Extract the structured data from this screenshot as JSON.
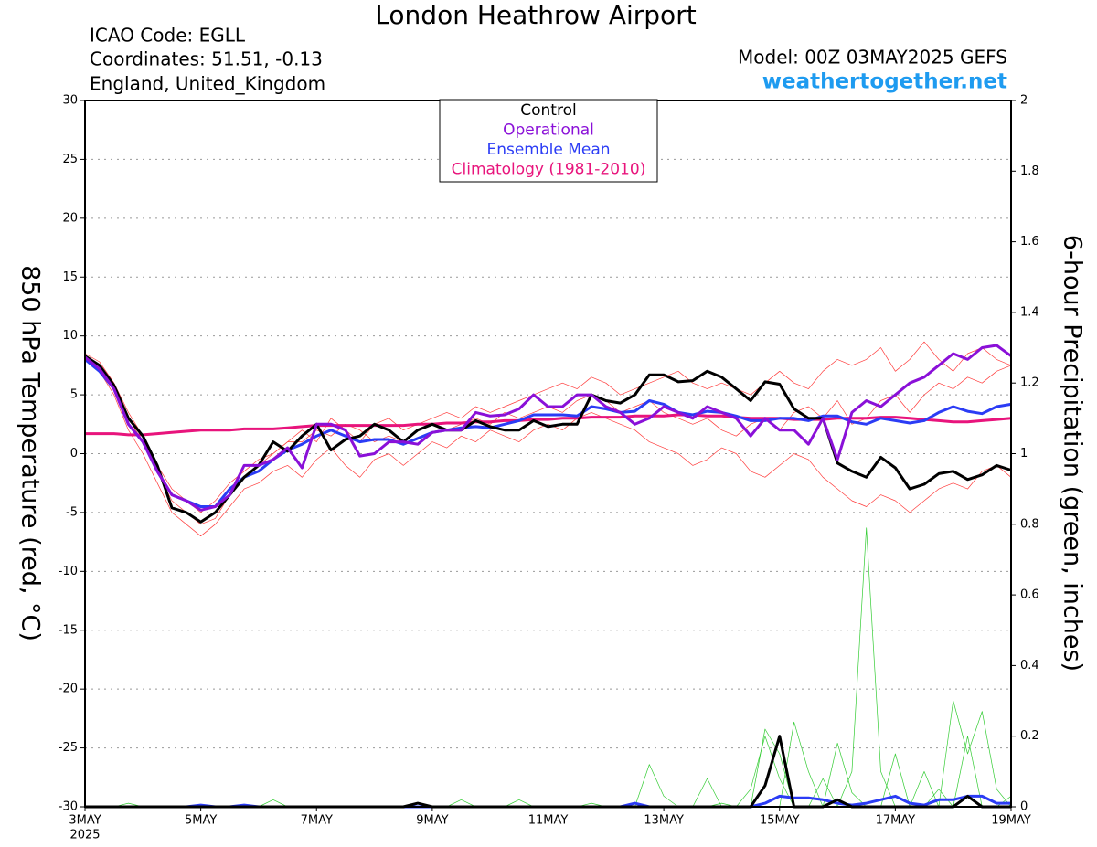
{
  "chart_data": {
    "type": "line",
    "title": "London Heathrow Airport",
    "info_lines": [
      "ICAO Code: EGLL",
      "Coordinates: 51.51, -0.13",
      "England, United_Kingdom"
    ],
    "model": "Model: 00Z 03MAY2025 GEFS",
    "site": "weathertogether.net",
    "y_label": "850 hPa Temperature (red, °C)",
    "y2_label": "6-hour Precipitation (green, inches)",
    "year_label": "2025",
    "categories": [
      "3MAY",
      null,
      null,
      null,
      null,
      null,
      null,
      null,
      "5MAY",
      null,
      null,
      null,
      null,
      null,
      null,
      null,
      "7MAY",
      null,
      null,
      null,
      null,
      null,
      null,
      null,
      "9MAY",
      null,
      null,
      null,
      null,
      null,
      null,
      null,
      "11MAY",
      null,
      null,
      null,
      null,
      null,
      null,
      null,
      "13MAY",
      null,
      null,
      null,
      null,
      null,
      null,
      null,
      "15MAY",
      null,
      null,
      null,
      null,
      null,
      null,
      null,
      "17MAY",
      null,
      null,
      null,
      null,
      null,
      null,
      null,
      "19MAY"
    ],
    "ylim": [
      -30,
      30
    ],
    "yticks": [
      -30,
      -25,
      -20,
      -15,
      -10,
      -5,
      0,
      5,
      10,
      15,
      20,
      25,
      30
    ],
    "y2lim": [
      0,
      2
    ],
    "y2ticks": [
      0,
      0.2,
      0.4,
      0.6,
      0.8,
      1,
      1.2,
      1.4,
      1.6,
      1.8,
      2
    ],
    "grid": true,
    "series": [
      {
        "color": "#ff3b3b",
        "width": 0.7,
        "values": [
          8.5,
          7.8,
          6,
          3.5,
          1.5,
          -1,
          -3,
          -4,
          -5,
          -4,
          -2.5,
          -1.5,
          -0.5,
          0,
          1,
          2,
          1,
          3,
          2,
          1,
          2.5,
          3,
          2,
          2.5,
          3,
          3.5,
          3,
          4,
          3.5,
          4,
          4.5,
          5,
          5.5,
          6,
          5.5,
          6.5,
          6,
          5,
          5.5,
          6,
          6.5,
          7,
          6,
          5.5,
          6,
          5.5,
          5,
          6,
          7,
          6,
          5.5,
          7,
          8,
          7.5,
          8,
          9,
          7,
          8,
          9.5,
          8,
          7,
          8.5,
          9,
          8,
          7.5
        ]
      },
      {
        "color": "#ff3b3b",
        "width": 0.7,
        "values": [
          8,
          7,
          5,
          2,
          0,
          -2.5,
          -5,
          -6,
          -7,
          -6,
          -4.5,
          -3,
          -2.5,
          -1.5,
          -1,
          -2,
          -0.5,
          0.5,
          -1,
          -2,
          -0.5,
          0,
          -1,
          0,
          1,
          0.5,
          1.5,
          1,
          2,
          1.5,
          1,
          2,
          2.5,
          2,
          3,
          3.5,
          3,
          2.5,
          2,
          1,
          0.5,
          0,
          -1,
          -0.5,
          0.5,
          0,
          -1.5,
          -2,
          -1,
          0,
          -0.5,
          -2,
          -3,
          -4,
          -4.5,
          -3.5,
          -4,
          -5,
          -4,
          -3,
          -2.5,
          -3,
          -1.5,
          -1,
          -2
        ]
      },
      {
        "color": "#ff3b3b",
        "width": 0.7,
        "values": [
          8.2,
          7.4,
          5.8,
          3,
          1,
          -1.5,
          -4,
          -5,
          -6,
          -5.5,
          -3.5,
          -2,
          -1,
          0,
          1,
          1,
          2,
          1.5,
          2.5,
          2,
          1,
          1.5,
          1,
          2,
          2.5,
          2,
          2.5,
          3,
          2.5,
          3.5,
          3,
          3.5,
          4,
          3.5,
          4.5,
          5,
          4.5,
          3.5,
          4,
          4.5,
          3.5,
          3,
          2.5,
          3,
          2,
          1.5,
          2.5,
          3,
          2,
          3.5,
          4,
          3,
          4.5,
          2.5,
          3,
          4.5,
          5,
          3.5,
          5,
          6,
          5.5,
          6.5,
          6,
          7,
          7.5
        ]
      },
      {
        "color": "#33cc33",
        "width": 0.7,
        "axis": "y2",
        "values": [
          0,
          0,
          0,
          0,
          0,
          0,
          0,
          0,
          0,
          0,
          0,
          0,
          0,
          0,
          0,
          0,
          0,
          0,
          0,
          0,
          0,
          0,
          0,
          0,
          0,
          0,
          0,
          0,
          0,
          0,
          0,
          0,
          0,
          0,
          0,
          0,
          0,
          0,
          0,
          0,
          0,
          0,
          0,
          0,
          0.01,
          0,
          0.05,
          0.2,
          0.08,
          0,
          0,
          0,
          0,
          0.1,
          0.79,
          0.1,
          0,
          0,
          0,
          0.05,
          0,
          0,
          0,
          0,
          0
        ]
      },
      {
        "color": "#33cc33",
        "width": 0.7,
        "axis": "y2",
        "values": [
          0,
          0,
          0,
          0.01,
          0,
          0,
          0,
          0,
          0,
          0,
          0,
          0,
          0,
          0,
          0,
          0,
          0,
          0,
          0,
          0,
          0,
          0,
          0,
          0,
          0,
          0,
          0.02,
          0,
          0,
          0,
          0,
          0,
          0,
          0,
          0,
          0,
          0,
          0,
          0,
          0.12,
          0.03,
          0,
          0,
          0,
          0,
          0,
          0,
          0,
          0,
          0.24,
          0.1,
          0,
          0.18,
          0.04,
          0,
          0,
          0,
          0,
          0,
          0,
          0.3,
          0.15,
          0.27,
          0.05,
          0
        ]
      },
      {
        "color": "#33cc33",
        "width": 0.7,
        "axis": "y2",
        "values": [
          0,
          0,
          0,
          0,
          0,
          0,
          0,
          0,
          0,
          0,
          0,
          0,
          0,
          0.02,
          0,
          0,
          0,
          0,
          0,
          0,
          0,
          0,
          0,
          0,
          0,
          0,
          0,
          0,
          0,
          0,
          0.02,
          0,
          0,
          0,
          0,
          0.01,
          0,
          0,
          0,
          0,
          0,
          0,
          0,
          0.08,
          0,
          0,
          0,
          0.22,
          0.15,
          0,
          0,
          0.08,
          0,
          0,
          0,
          0,
          0.15,
          0,
          0.1,
          0,
          0,
          0.2,
          0,
          0,
          0.03
        ]
      },
      {
        "color": "#e8147c",
        "width": 3,
        "values": [
          1.7,
          1.7,
          1.7,
          1.6,
          1.6,
          1.7,
          1.8,
          1.9,
          2.0,
          2.0,
          2.0,
          2.1,
          2.1,
          2.1,
          2.2,
          2.3,
          2.4,
          2.4,
          2.4,
          2.4,
          2.4,
          2.4,
          2.4,
          2.5,
          2.5,
          2.6,
          2.6,
          2.7,
          2.7,
          2.8,
          2.8,
          2.9,
          2.9,
          3.0,
          3.0,
          3.1,
          3.1,
          3.1,
          3.2,
          3.2,
          3.2,
          3.3,
          3.3,
          3.2,
          3.2,
          3.1,
          3.0,
          3.0,
          3.0,
          2.9,
          2.9,
          2.9,
          3.0,
          3.0,
          3.0,
          3.1,
          3.1,
          3.0,
          2.9,
          2.8,
          2.7,
          2.7,
          2.8,
          2.9,
          3.0
        ]
      },
      {
        "color": "#2b3cf5",
        "width": 3,
        "values": [
          8,
          7,
          5.5,
          2.5,
          1,
          -1.5,
          -3.5,
          -4,
          -4.5,
          -4.5,
          -3,
          -2,
          -1.5,
          -0.5,
          0.3,
          0.8,
          1.5,
          2,
          1.5,
          1,
          1.2,
          1.2,
          0.8,
          1.3,
          1.8,
          2,
          2.2,
          2.3,
          2.2,
          2.5,
          2.8,
          3.3,
          3.3,
          3.3,
          3.2,
          4,
          3.8,
          3.5,
          3.6,
          4.5,
          4.2,
          3.5,
          3.3,
          3.6,
          3.5,
          3.2,
          2.8,
          2.8,
          3,
          3,
          2.8,
          3.2,
          3.2,
          2.7,
          2.5,
          3,
          2.8,
          2.6,
          2.8,
          3.5,
          4,
          3.6,
          3.4,
          4,
          4.2
        ]
      },
      {
        "color": "#2b3cf5",
        "width": 3,
        "axis": "y2",
        "values": [
          0,
          0,
          0,
          0,
          0,
          0,
          0,
          0,
          0.005,
          0,
          0,
          0.005,
          0,
          0,
          0,
          0,
          0,
          0,
          0,
          0,
          0,
          0,
          0,
          0,
          0,
          0,
          0,
          0,
          0,
          0,
          0,
          0,
          0,
          0,
          0,
          0,
          0,
          0,
          0.01,
          0,
          0,
          0,
          0,
          0,
          0,
          0,
          0,
          0.01,
          0.03,
          0.025,
          0.025,
          0.02,
          0.01,
          0.005,
          0.01,
          0.02,
          0.03,
          0.01,
          0.005,
          0.02,
          0.02,
          0.03,
          0.03,
          0.01,
          0.01
        ]
      },
      {
        "name": "Control",
        "color": "#000000",
        "width": 3,
        "values": [
          8.3,
          7.5,
          5.8,
          3,
          1.5,
          -1,
          -4.6,
          -5,
          -5.8,
          -5,
          -3.5,
          -2,
          -1,
          1,
          0.2,
          1.5,
          2.5,
          0.3,
          1.2,
          1.5,
          2.5,
          2,
          1,
          2,
          2.5,
          2,
          2,
          2.8,
          2.3,
          2,
          2,
          2.8,
          2.3,
          2.5,
          2.5,
          5,
          4.5,
          4.3,
          5,
          6.7,
          6.7,
          6.1,
          6.2,
          7,
          6.5,
          5.5,
          4.5,
          6.1,
          5.9,
          3.8,
          3,
          3,
          -0.8,
          -1.5,
          -2,
          -0.3,
          -1.2,
          -3,
          -2.6,
          -1.7,
          -1.5,
          -2.2,
          -1.8,
          -1,
          -1.4
        ]
      },
      {
        "color": "#000000",
        "width": 3,
        "axis": "y2",
        "values": [
          0,
          0,
          0,
          0,
          0,
          0,
          0,
          0,
          0,
          0,
          0,
          0,
          0,
          0,
          0,
          0,
          0,
          0,
          0,
          0,
          0,
          0,
          0,
          0.01,
          0,
          0,
          0,
          0,
          0,
          0,
          0,
          0,
          0,
          0,
          0,
          0,
          0,
          0,
          0,
          0,
          0,
          0,
          0,
          0,
          0,
          0,
          0,
          0.06,
          0.2,
          0,
          0,
          0,
          0.02,
          0,
          0,
          0,
          0,
          0,
          0,
          0,
          0,
          0.03,
          0,
          0,
          0
        ]
      },
      {
        "name": "Operational",
        "color": "#8a10d8",
        "width": 3,
        "values": [
          8.2,
          7.2,
          5.5,
          2.5,
          1,
          -1.5,
          -3.5,
          -4,
          -4.8,
          -4.5,
          -3.5,
          -1,
          -1,
          -0.5,
          0.5,
          -1.2,
          2.5,
          2.5,
          2,
          -0.2,
          0,
          1,
          1,
          0.8,
          1.8,
          2,
          2,
          3.5,
          3.2,
          3.3,
          3.8,
          5,
          4,
          4,
          5,
          5,
          4,
          3.5,
          2.5,
          3,
          4,
          3.5,
          3,
          4,
          3.5,
          3,
          1.5,
          3,
          2,
          2,
          0.8,
          3,
          -0.5,
          3.5,
          4.5,
          4,
          5,
          6,
          6.5,
          7.5,
          8.5,
          8,
          9,
          9.2,
          8.3
        ]
      },
      {
        "name": "Ensemble Mean",
        "color": "#2b3cf5"
      },
      {
        "name": "Climatology (1981-2010)",
        "color": "#e8147c"
      }
    ]
  }
}
